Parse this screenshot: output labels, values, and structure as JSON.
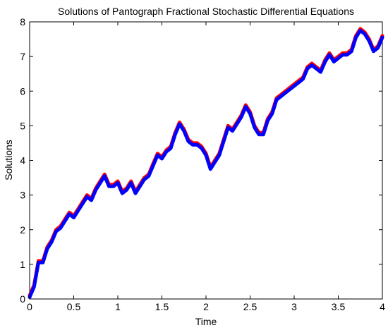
{
  "chart_data": {
    "type": "line",
    "title": "Solutions of Pantograph Fractional Stochastic Differential Equations",
    "xlabel": "Time",
    "ylabel": "Solutions",
    "xlim": [
      0,
      4
    ],
    "ylim": [
      0,
      8
    ],
    "xticks": [
      "0",
      "0.5",
      "1",
      "1.5",
      "2",
      "2.5",
      "3",
      "3.5",
      "4"
    ],
    "yticks": [
      "0",
      "1",
      "2",
      "3",
      "4",
      "5",
      "6",
      "7",
      "8"
    ],
    "grid": false,
    "legend": "none",
    "series": [
      {
        "color": "#ff0000",
        "x": [
          0,
          0.05,
          0.1,
          0.15,
          0.2,
          0.25,
          0.3,
          0.35,
          0.4,
          0.45,
          0.5,
          0.55,
          0.6,
          0.65,
          0.7,
          0.75,
          0.8,
          0.85,
          0.9,
          0.95,
          1.0,
          1.05,
          1.1,
          1.15,
          1.2,
          1.25,
          1.3,
          1.35,
          1.4,
          1.45,
          1.5,
          1.55,
          1.6,
          1.65,
          1.7,
          1.75,
          1.8,
          1.85,
          1.9,
          1.95,
          2.0,
          2.05,
          2.1,
          2.15,
          2.2,
          2.25,
          2.3,
          2.35,
          2.4,
          2.45,
          2.5,
          2.55,
          2.6,
          2.65,
          2.7,
          2.75,
          2.8,
          2.85,
          2.9,
          2.95,
          3.0,
          3.05,
          3.1,
          3.15,
          3.2,
          3.25,
          3.3,
          3.35,
          3.4,
          3.45,
          3.5,
          3.55,
          3.6,
          3.65,
          3.7,
          3.75,
          3.8,
          3.85,
          3.9,
          3.95,
          4.0
        ],
        "y": [
          0.1,
          0.4,
          1.1,
          1.1,
          1.5,
          1.7,
          2.0,
          2.1,
          2.3,
          2.5,
          2.4,
          2.6,
          2.8,
          3.0,
          2.9,
          3.2,
          3.4,
          3.6,
          3.3,
          3.3,
          3.4,
          3.1,
          3.2,
          3.4,
          3.1,
          3.3,
          3.5,
          3.6,
          3.9,
          4.2,
          4.1,
          4.3,
          4.4,
          4.8,
          5.1,
          4.9,
          4.6,
          4.5,
          4.5,
          4.4,
          4.2,
          3.8,
          4.0,
          4.2,
          4.6,
          5.0,
          4.9,
          5.1,
          5.3,
          5.6,
          5.4,
          5.0,
          4.8,
          4.8,
          5.2,
          5.4,
          5.8,
          5.9,
          6.0,
          6.1,
          6.2,
          6.3,
          6.4,
          6.7,
          6.8,
          6.7,
          6.6,
          6.9,
          7.1,
          6.9,
          7.0,
          7.1,
          7.1,
          7.2,
          7.6,
          7.8,
          7.7,
          7.5,
          7.2,
          7.3,
          7.6
        ]
      },
      {
        "color": "#0000ff",
        "x": [
          0,
          0.05,
          0.1,
          0.15,
          0.2,
          0.25,
          0.3,
          0.35,
          0.4,
          0.45,
          0.5,
          0.55,
          0.6,
          0.65,
          0.7,
          0.75,
          0.8,
          0.85,
          0.9,
          0.95,
          1.0,
          1.05,
          1.1,
          1.15,
          1.2,
          1.25,
          1.3,
          1.35,
          1.4,
          1.45,
          1.5,
          1.55,
          1.6,
          1.65,
          1.7,
          1.75,
          1.8,
          1.85,
          1.9,
          1.95,
          2.0,
          2.05,
          2.1,
          2.15,
          2.2,
          2.25,
          2.3,
          2.35,
          2.4,
          2.45,
          2.5,
          2.55,
          2.6,
          2.65,
          2.7,
          2.75,
          2.8,
          2.85,
          2.9,
          2.95,
          3.0,
          3.05,
          3.1,
          3.15,
          3.2,
          3.25,
          3.3,
          3.35,
          3.4,
          3.45,
          3.5,
          3.55,
          3.6,
          3.65,
          3.7,
          3.75,
          3.8,
          3.85,
          3.9,
          3.95,
          4.0
        ],
        "y": [
          0.05,
          0.35,
          1.05,
          1.05,
          1.45,
          1.65,
          1.95,
          2.05,
          2.25,
          2.45,
          2.35,
          2.55,
          2.75,
          2.95,
          2.85,
          3.15,
          3.35,
          3.55,
          3.25,
          3.25,
          3.35,
          3.05,
          3.15,
          3.35,
          3.05,
          3.25,
          3.45,
          3.55,
          3.85,
          4.15,
          4.05,
          4.25,
          4.35,
          4.75,
          5.05,
          4.85,
          4.55,
          4.45,
          4.45,
          4.35,
          4.15,
          3.75,
          3.95,
          4.15,
          4.55,
          4.95,
          4.85,
          5.05,
          5.25,
          5.55,
          5.35,
          4.95,
          4.75,
          4.75,
          5.15,
          5.35,
          5.75,
          5.85,
          5.95,
          6.05,
          6.15,
          6.25,
          6.35,
          6.65,
          6.75,
          6.65,
          6.55,
          6.85,
          7.05,
          6.85,
          6.95,
          7.05,
          7.05,
          7.15,
          7.55,
          7.75,
          7.65,
          7.45,
          7.15,
          7.25,
          7.55
        ]
      }
    ]
  }
}
